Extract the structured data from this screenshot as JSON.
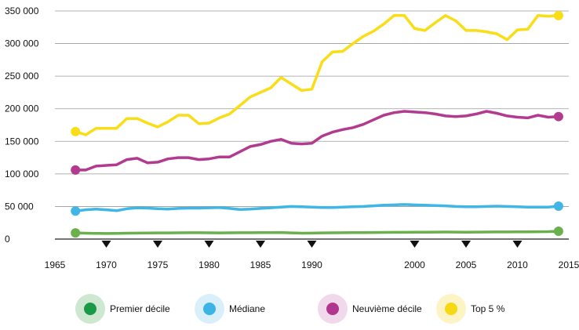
{
  "chart_data": {
    "type": "line",
    "title": "",
    "xlabel": "",
    "ylabel": "",
    "xlim": [
      1965,
      2015
    ],
    "ylim": [
      0,
      350000
    ],
    "grid": "horizontal",
    "legend_position": "bottom",
    "x_ticks": [
      1965,
      1970,
      1975,
      1980,
      1985,
      1990,
      2000,
      2005,
      2010,
      2015
    ],
    "x_tick_labels": [
      "1965",
      "1970",
      "1975",
      "1980",
      "1985",
      "1990",
      "2000",
      "2005",
      "2010",
      "2015"
    ],
    "x_tick_markers": [
      1970,
      1975,
      1980,
      1985,
      1990,
      2000,
      2005,
      2010
    ],
    "y_ticks": [
      0,
      50000,
      100000,
      150000,
      200000,
      250000,
      300000,
      350000
    ],
    "y_tick_labels": [
      "0",
      "50 000",
      "100 000",
      "150 000",
      "200 000",
      "250 000",
      "300 000",
      "350 000"
    ],
    "series": [
      {
        "name": "Premier décile",
        "color": "#6ab04c",
        "legend_color": "#1a9a48",
        "legend_halo": "#cde7d0",
        "x": [
          1967,
          1968,
          1969,
          1970,
          1971,
          1972,
          1973,
          1974,
          1975,
          1976,
          1977,
          1978,
          1979,
          1980,
          1981,
          1982,
          1983,
          1984,
          1985,
          1986,
          1987,
          1988,
          1989,
          1990,
          1991,
          1992,
          1993,
          1994,
          1995,
          1996,
          1997,
          1998,
          1999,
          2000,
          2001,
          2002,
          2003,
          2004,
          2005,
          2006,
          2007,
          2008,
          2009,
          2010,
          2011,
          2012,
          2013,
          2014
        ],
        "values": [
          9500,
          9000,
          8800,
          8500,
          8700,
          9000,
          9200,
          9300,
          9500,
          9500,
          9600,
          9700,
          9800,
          9600,
          9500,
          9600,
          9700,
          9800,
          9900,
          10000,
          10100,
          9500,
          9000,
          9200,
          9500,
          9600,
          9800,
          9900,
          10000,
          10100,
          10200,
          10300,
          10400,
          10500,
          10600,
          10700,
          10800,
          10700,
          10600,
          10700,
          10800,
          10900,
          11000,
          11100,
          11200,
          11300,
          11400,
          12000
        ]
      },
      {
        "name": "Médiane",
        "color": "#3fb6e6",
        "legend_color": "#3cb4e5",
        "legend_halo": "#d9f0fa",
        "x": [
          1967,
          1968,
          1969,
          1970,
          1971,
          1972,
          1973,
          1974,
          1975,
          1976,
          1977,
          1978,
          1979,
          1980,
          1981,
          1982,
          1983,
          1984,
          1985,
          1986,
          1987,
          1988,
          1989,
          1990,
          1991,
          1992,
          1993,
          1994,
          1995,
          1996,
          1997,
          1998,
          1999,
          2000,
          2001,
          2002,
          2003,
          2004,
          2005,
          2006,
          2007,
          2008,
          2009,
          2010,
          2011,
          2012,
          2013,
          2014
        ],
        "values": [
          43000,
          45000,
          46000,
          45000,
          43500,
          46500,
          48000,
          47500,
          46500,
          46000,
          47000,
          47500,
          47500,
          48000,
          48500,
          47000,
          45500,
          46000,
          47000,
          48000,
          49000,
          50000,
          49500,
          49000,
          48500,
          48500,
          49000,
          49500,
          50000,
          51000,
          52000,
          52500,
          53000,
          52500,
          52000,
          51500,
          51000,
          50000,
          49500,
          49500,
          50000,
          50500,
          50000,
          49500,
          49000,
          49000,
          49000,
          50500
        ]
      },
      {
        "name": "Neuvième décile",
        "color": "#b23a8f",
        "legend_color": "#b0378d",
        "legend_halo": "#f0d9eb",
        "x": [
          1967,
          1968,
          1969,
          1970,
          1971,
          1972,
          1973,
          1974,
          1975,
          1976,
          1977,
          1978,
          1979,
          1980,
          1981,
          1982,
          1983,
          1984,
          1985,
          1986,
          1987,
          1988,
          1989,
          1990,
          1991,
          1992,
          1993,
          1994,
          1995,
          1996,
          1997,
          1998,
          1999,
          2000,
          2001,
          2002,
          2003,
          2004,
          2005,
          2006,
          2007,
          2008,
          2009,
          2010,
          2011,
          2012,
          2013,
          2014
        ],
        "values": [
          106000,
          106000,
          112000,
          113000,
          114000,
          122000,
          124000,
          117000,
          118000,
          123000,
          125000,
          125000,
          122000,
          123000,
          126000,
          126000,
          134000,
          142000,
          145000,
          150000,
          153000,
          147000,
          146000,
          147000,
          158000,
          164000,
          168000,
          171000,
          176000,
          183000,
          190000,
          194000,
          196000,
          195000,
          194000,
          192000,
          189000,
          188000,
          189000,
          192000,
          196000,
          193000,
          189000,
          187000,
          186000,
          190000,
          187000,
          188000
        ]
      },
      {
        "name": "Top 5 %",
        "color": "#f8dd17",
        "legend_color": "#f6d912",
        "legend_halo": "#fdf4c6",
        "x": [
          1967,
          1968,
          1969,
          1970,
          1971,
          1972,
          1973,
          1974,
          1975,
          1976,
          1977,
          1978,
          1979,
          1980,
          1981,
          1982,
          1983,
          1984,
          1985,
          1986,
          1987,
          1988,
          1989,
          1990,
          1991,
          1992,
          1993,
          1994,
          1995,
          1996,
          1997,
          1998,
          1999,
          2000,
          2001,
          2002,
          2003,
          2004,
          2005,
          2006,
          2007,
          2008,
          2009,
          2010,
          2011,
          2012,
          2013,
          2014
        ],
        "values": [
          165000,
          160000,
          170000,
          170000,
          170000,
          185000,
          185000,
          178000,
          172000,
          180000,
          190000,
          190000,
          177000,
          178000,
          186000,
          192000,
          205000,
          218000,
          225000,
          232000,
          248000,
          238000,
          228000,
          230000,
          272000,
          287000,
          288000,
          300000,
          311000,
          319000,
          330000,
          343000,
          343000,
          323000,
          320000,
          332000,
          343000,
          335000,
          320000,
          320000,
          318000,
          315000,
          306000,
          321000,
          322000,
          343000,
          342000,
          343000
        ]
      }
    ]
  }
}
